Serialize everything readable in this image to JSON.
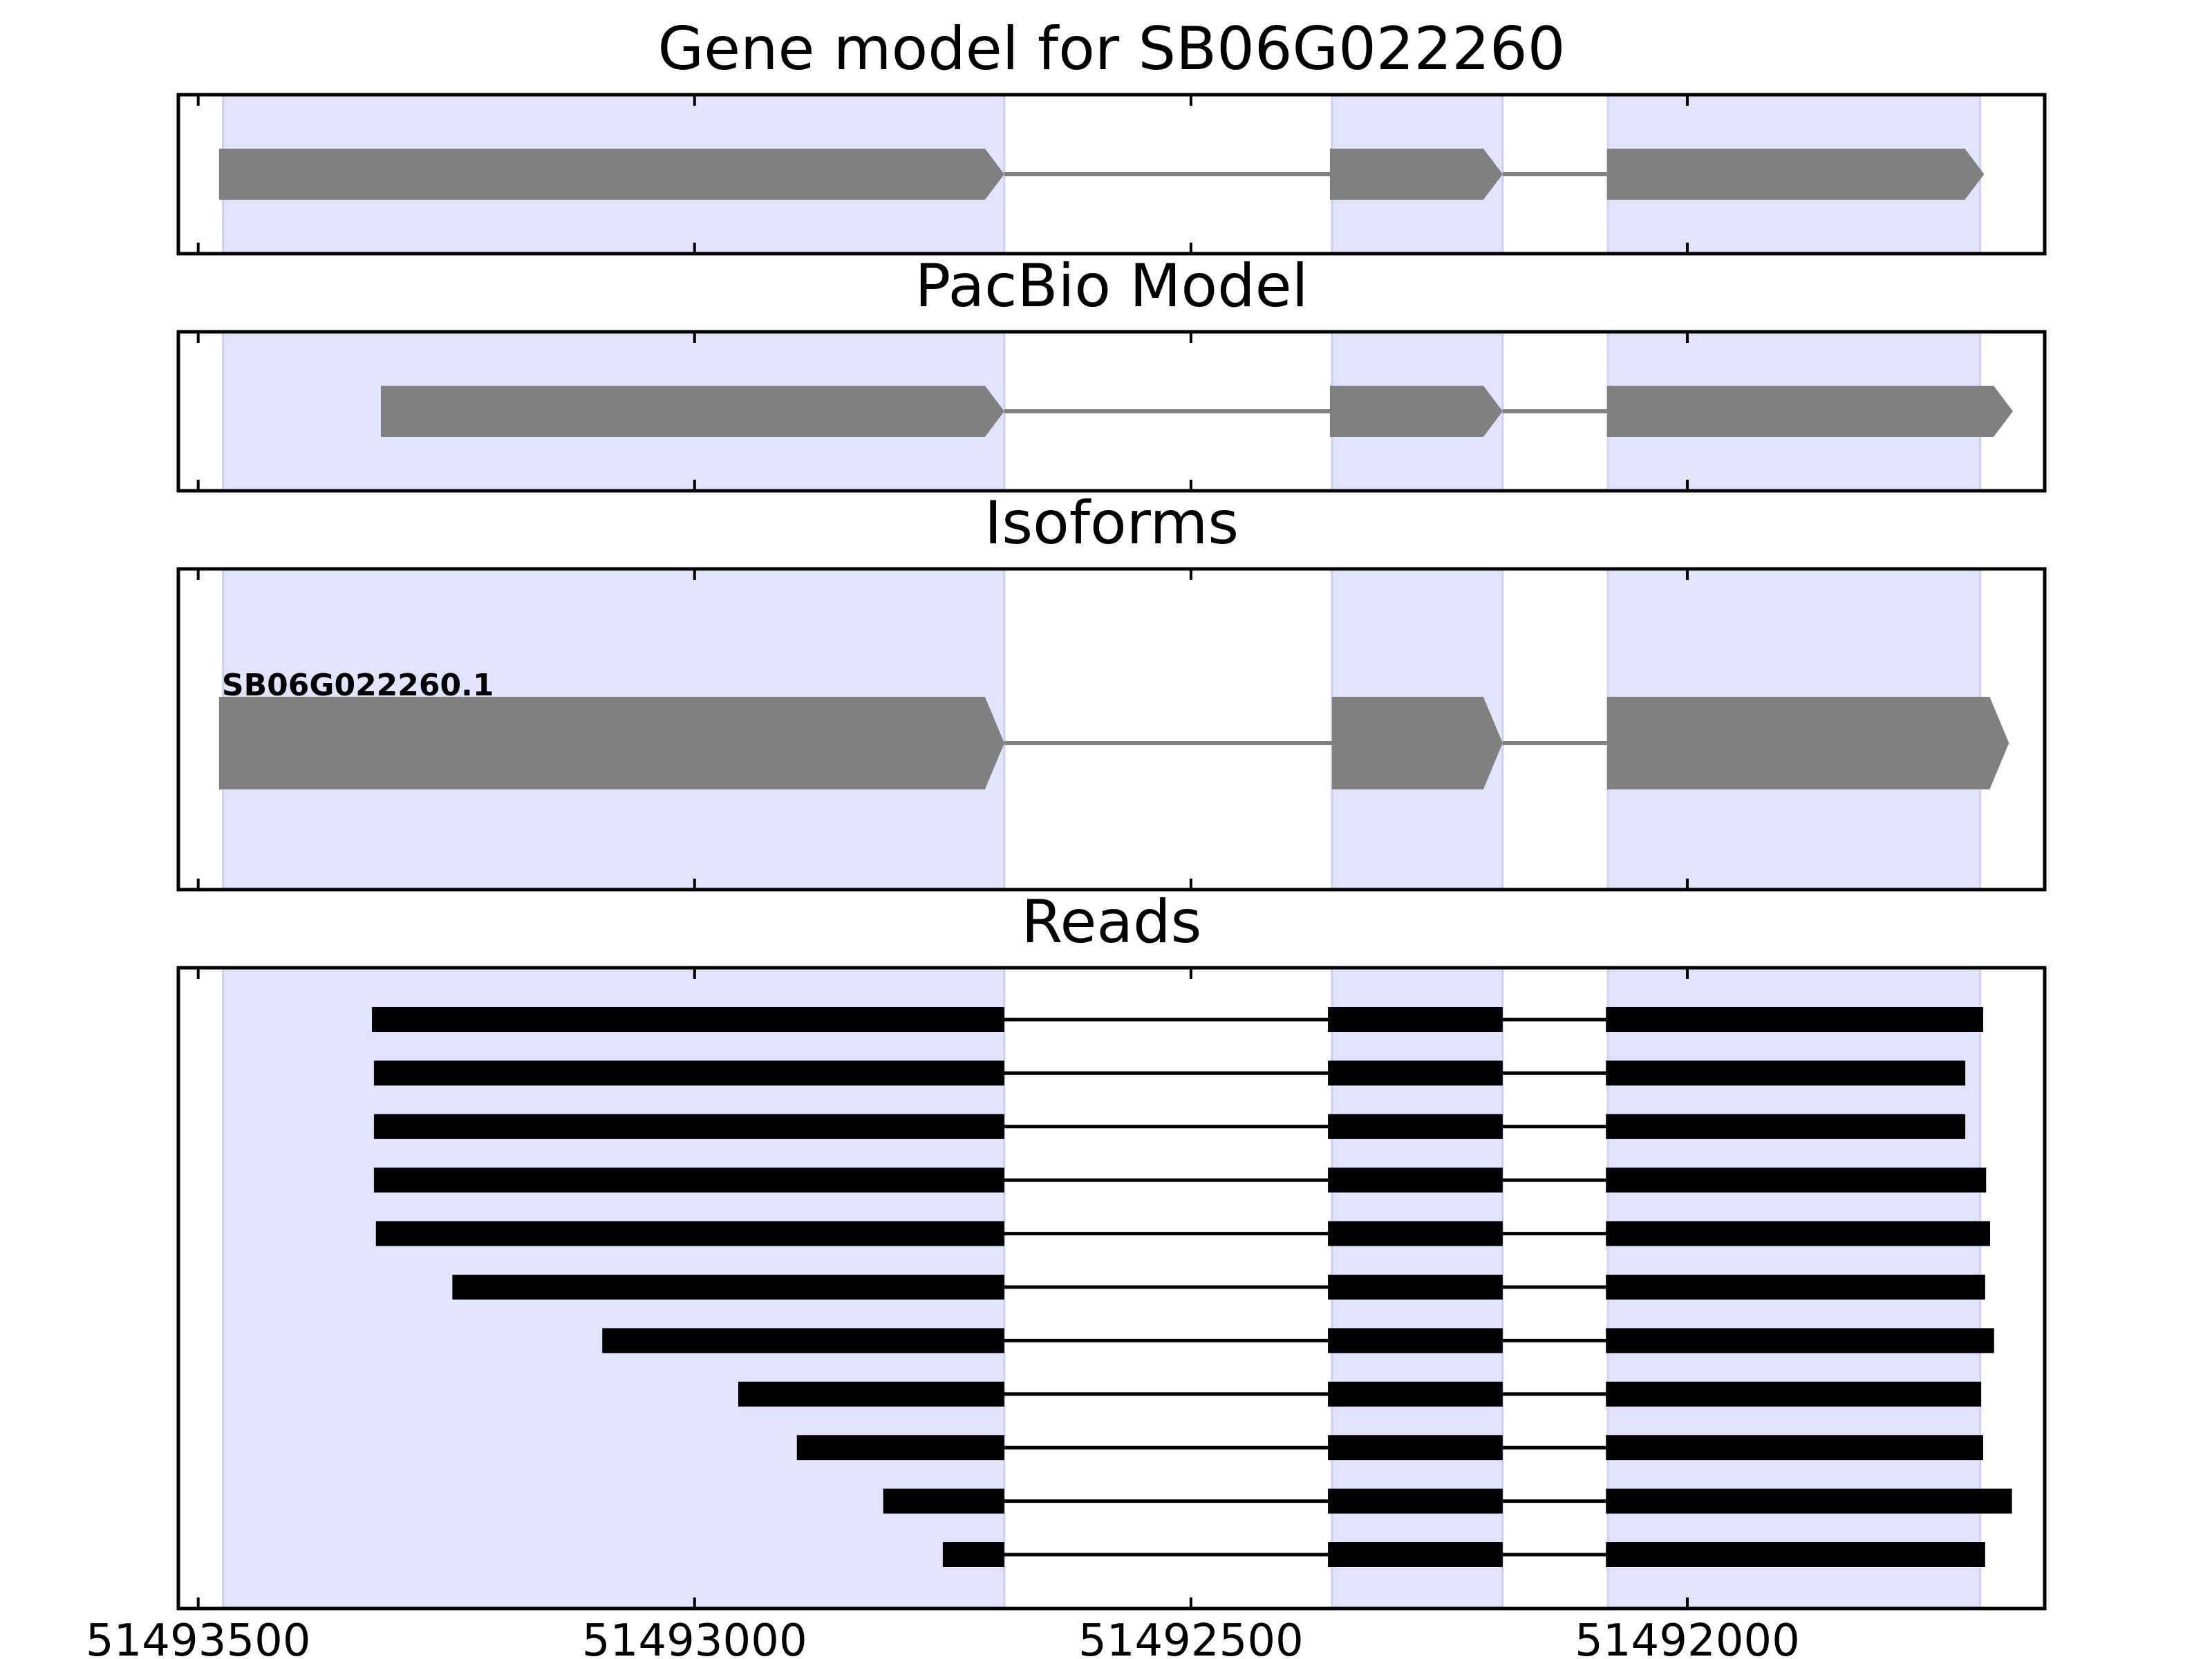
{
  "figure": {
    "background": "#ffffff",
    "shade_color": "#e3e3fd",
    "feature_color": "#808080",
    "read_color": "#000000"
  },
  "chart_data": {
    "type": "gene-model",
    "x_axis": {
      "min": 51493520,
      "max": 51491640,
      "ticks": [
        51493500,
        51493000,
        51492500,
        51492000
      ],
      "tick_labels": [
        "51493500",
        "51493000",
        "51492500",
        "51492000"
      ]
    },
    "shaded_exon_regions": [
      [
        51493475,
        51492688
      ],
      [
        51492358,
        51492186
      ],
      [
        51492080,
        51491705
      ]
    ],
    "panels": [
      {
        "title": "Gene model for SB06G022260",
        "kind": "gene",
        "tracks": [
          {
            "label": "",
            "exons": [
              [
                51493479,
                51492688
              ],
              [
                51492360,
                51492186
              ],
              [
                51492081,
                51491701
              ]
            ]
          }
        ]
      },
      {
        "title": "PacBio Model",
        "kind": "gene",
        "tracks": [
          {
            "label": "",
            "exons": [
              [
                51493316,
                51492688
              ],
              [
                51492360,
                51492186
              ],
              [
                51492081,
                51491672
              ]
            ]
          }
        ]
      },
      {
        "title": "Isoforms",
        "kind": "isoform",
        "tracks": [
          {
            "label": "SB06G022260.1",
            "exons": [
              [
                51493479,
                51492688
              ],
              [
                51492358,
                51492186
              ],
              [
                51492081,
                51491676
              ]
            ]
          }
        ]
      },
      {
        "title": "Reads",
        "kind": "reads",
        "tracks": [
          {
            "exons": [
              [
                51493325,
                51492688
              ],
              [
                51492362,
                51492186
              ],
              [
                51492082,
                51491702
              ]
            ]
          },
          {
            "exons": [
              [
                51493323,
                51492688
              ],
              [
                51492362,
                51492186
              ],
              [
                51492082,
                51491720
              ]
            ]
          },
          {
            "exons": [
              [
                51493323,
                51492688
              ],
              [
                51492362,
                51492186
              ],
              [
                51492082,
                51491720
              ]
            ]
          },
          {
            "exons": [
              [
                51493323,
                51492688
              ],
              [
                51492362,
                51492186
              ],
              [
                51492082,
                51491699
              ]
            ]
          },
          {
            "exons": [
              [
                51493321,
                51492688
              ],
              [
                51492362,
                51492186
              ],
              [
                51492082,
                51491695
              ]
            ]
          },
          {
            "exons": [
              [
                51493244,
                51492688
              ],
              [
                51492362,
                51492186
              ],
              [
                51492082,
                51491700
              ]
            ]
          },
          {
            "exons": [
              [
                51493093,
                51492688
              ],
              [
                51492362,
                51492186
              ],
              [
                51492082,
                51491691
              ]
            ]
          },
          {
            "exons": [
              [
                51492956,
                51492688
              ],
              [
                51492362,
                51492186
              ],
              [
                51492082,
                51491704
              ]
            ]
          },
          {
            "exons": [
              [
                51492897,
                51492688
              ],
              [
                51492362,
                51492186
              ],
              [
                51492082,
                51491702
              ]
            ]
          },
          {
            "exons": [
              [
                51492810,
                51492688
              ],
              [
                51492362,
                51492186
              ],
              [
                51492082,
                51491673
              ]
            ]
          },
          {
            "exons": [
              [
                51492750,
                51492688
              ],
              [
                51492362,
                51492186
              ],
              [
                51492082,
                51491700
              ]
            ]
          }
        ]
      }
    ]
  }
}
